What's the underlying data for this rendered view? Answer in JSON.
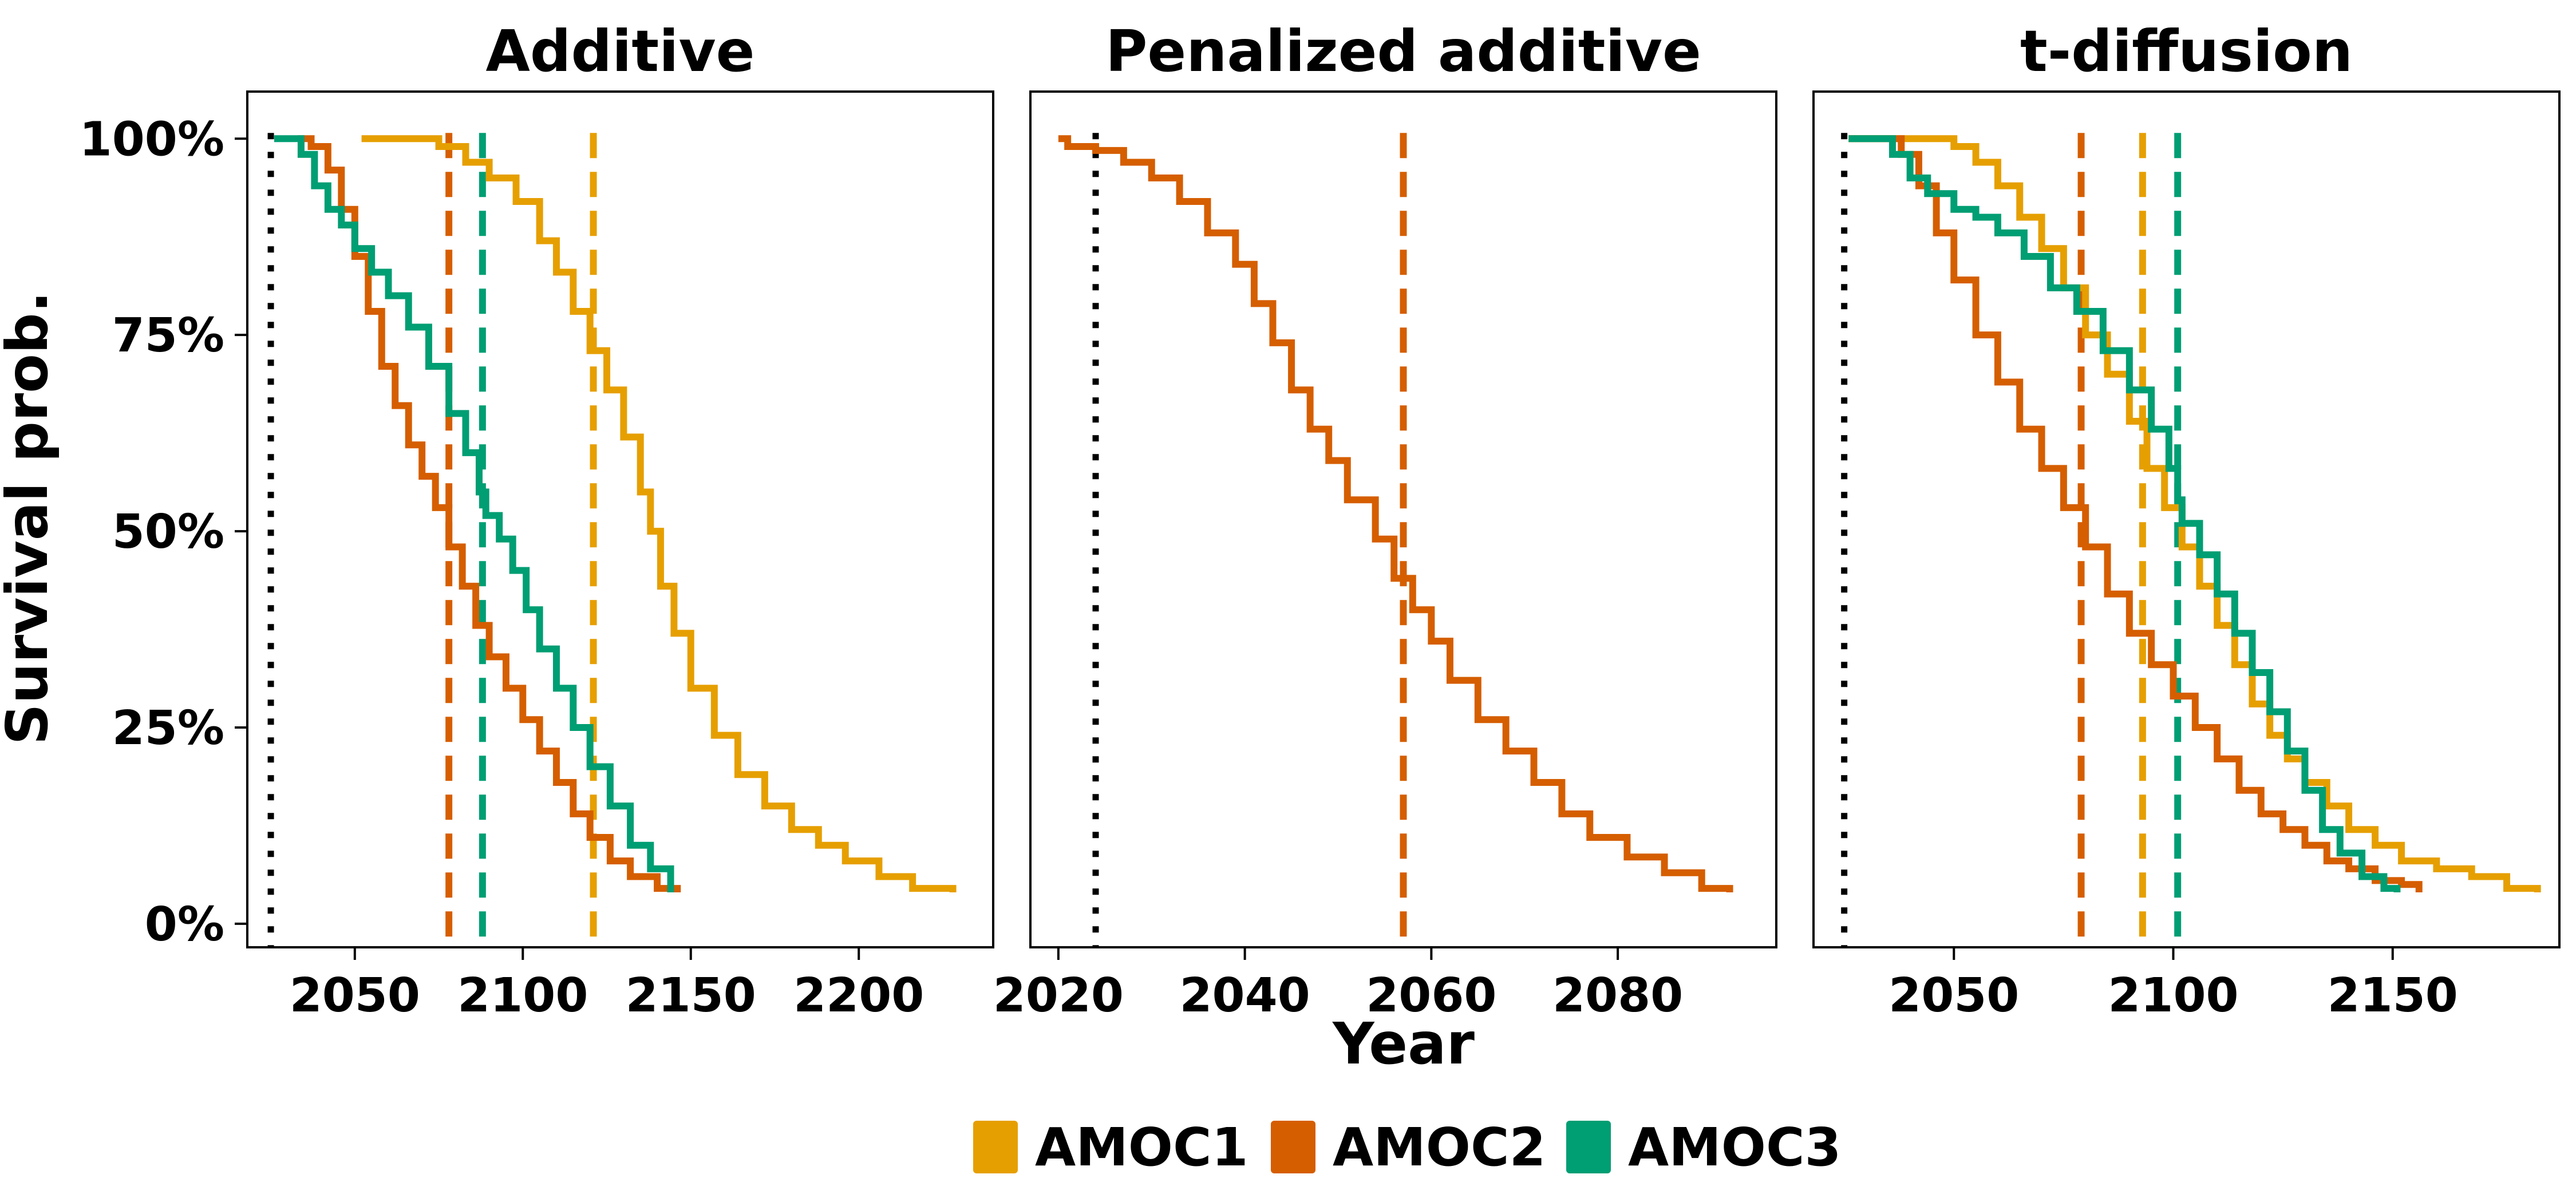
{
  "figure": {
    "ylabel": "Survival prob.",
    "xlabel": "Year",
    "colors": {
      "AMOC1": "#E69F00",
      "AMOC2": "#D55E00",
      "AMOC3": "#009E73"
    },
    "legend": {
      "placement": "bottom-center",
      "entries": [
        "AMOC1",
        "AMOC2",
        "AMOC3"
      ]
    }
  },
  "chart_data": [
    {
      "type": "line",
      "title": "Additive",
      "xlim": [
        2018,
        2240
      ],
      "ylim": [
        -0.03,
        1.06
      ],
      "xticks": [
        2050,
        2100,
        2150,
        2200
      ],
      "yticks": [
        0,
        0.25,
        0.5,
        0.75,
        1.0
      ],
      "ytick_labels": [
        "0%",
        "25%",
        "50%",
        "75%",
        "100%"
      ],
      "step": true,
      "series": [
        {
          "name": "AMOC1",
          "points": [
            [
              2052,
              1.0
            ],
            [
              2068,
              1.0
            ],
            [
              2075,
              0.99
            ],
            [
              2083,
              0.97
            ],
            [
              2090,
              0.95
            ],
            [
              2098,
              0.92
            ],
            [
              2105,
              0.87
            ],
            [
              2110,
              0.83
            ],
            [
              2115,
              0.78
            ],
            [
              2120,
              0.73
            ],
            [
              2125,
              0.68
            ],
            [
              2130,
              0.62
            ],
            [
              2135,
              0.55
            ],
            [
              2138,
              0.5
            ],
            [
              2141,
              0.43
            ],
            [
              2145,
              0.37
            ],
            [
              2150,
              0.3
            ],
            [
              2157,
              0.24
            ],
            [
              2164,
              0.19
            ],
            [
              2172,
              0.15
            ],
            [
              2180,
              0.12
            ],
            [
              2188,
              0.1
            ],
            [
              2196,
              0.08
            ],
            [
              2206,
              0.06
            ],
            [
              2216,
              0.045
            ],
            [
              2228,
              0.04
            ]
          ]
        },
        {
          "name": "AMOC2",
          "points": [
            [
              2033,
              1.0
            ],
            [
              2037,
              0.99
            ],
            [
              2042,
              0.96
            ],
            [
              2046,
              0.91
            ],
            [
              2050,
              0.85
            ],
            [
              2054,
              0.78
            ],
            [
              2058,
              0.71
            ],
            [
              2062,
              0.66
            ],
            [
              2066,
              0.61
            ],
            [
              2070,
              0.57
            ],
            [
              2074,
              0.53
            ],
            [
              2078,
              0.48
            ],
            [
              2082,
              0.43
            ],
            [
              2086,
              0.38
            ],
            [
              2090,
              0.34
            ],
            [
              2095,
              0.3
            ],
            [
              2100,
              0.26
            ],
            [
              2105,
              0.22
            ],
            [
              2110,
              0.18
            ],
            [
              2115,
              0.14
            ],
            [
              2120,
              0.11
            ],
            [
              2126,
              0.08
            ],
            [
              2132,
              0.06
            ],
            [
              2140,
              0.045
            ],
            [
              2146,
              0.04
            ]
          ]
        },
        {
          "name": "AMOC3",
          "points": [
            [
              2026,
              1.0
            ],
            [
              2030,
              1.0
            ],
            [
              2034,
              0.98
            ],
            [
              2038,
              0.94
            ],
            [
              2042,
              0.91
            ],
            [
              2046,
              0.89
            ],
            [
              2050,
              0.86
            ],
            [
              2055,
              0.83
            ],
            [
              2060,
              0.8
            ],
            [
              2066,
              0.76
            ],
            [
              2072,
              0.71
            ],
            [
              2078,
              0.65
            ],
            [
              2083,
              0.6
            ],
            [
              2087,
              0.55
            ],
            [
              2089,
              0.52
            ],
            [
              2093,
              0.49
            ],
            [
              2097,
              0.45
            ],
            [
              2101,
              0.4
            ],
            [
              2105,
              0.35
            ],
            [
              2110,
              0.3
            ],
            [
              2115,
              0.25
            ],
            [
              2120,
              0.2
            ],
            [
              2126,
              0.15
            ],
            [
              2132,
              0.1
            ],
            [
              2138,
              0.07
            ],
            [
              2144,
              0.04
            ]
          ]
        }
      ],
      "vlines": [
        {
          "x": 2025,
          "style": "dotted",
          "color": "#000000"
        },
        {
          "x": 2078,
          "style": "dashed",
          "color": "#D55E00"
        },
        {
          "x": 2088,
          "style": "dashed",
          "color": "#009E73"
        },
        {
          "x": 2121,
          "style": "dashed",
          "color": "#E69F00"
        }
      ]
    },
    {
      "type": "line",
      "title": "Penalized additive",
      "xlim": [
        2017,
        2097
      ],
      "ylim": [
        -0.03,
        1.06
      ],
      "xticks": [
        2020,
        2040,
        2060,
        2080
      ],
      "yticks": [
        0,
        0.25,
        0.5,
        0.75,
        1.0
      ],
      "ytick_labels": [],
      "step": true,
      "series": [
        {
          "name": "AMOC2",
          "points": [
            [
              2020,
              1.0
            ],
            [
              2021,
              0.99
            ],
            [
              2024,
              0.985
            ],
            [
              2027,
              0.97
            ],
            [
              2030,
              0.95
            ],
            [
              2033,
              0.92
            ],
            [
              2036,
              0.88
            ],
            [
              2039,
              0.84
            ],
            [
              2041,
              0.79
            ],
            [
              2043,
              0.74
            ],
            [
              2045,
              0.68
            ],
            [
              2047,
              0.63
            ],
            [
              2049,
              0.59
            ],
            [
              2051,
              0.54
            ],
            [
              2054,
              0.49
            ],
            [
              2056,
              0.44
            ],
            [
              2058,
              0.4
            ],
            [
              2060,
              0.36
            ],
            [
              2062,
              0.31
            ],
            [
              2065,
              0.26
            ],
            [
              2068,
              0.22
            ],
            [
              2071,
              0.18
            ],
            [
              2074,
              0.14
            ],
            [
              2077,
              0.11
            ],
            [
              2081,
              0.085
            ],
            [
              2085,
              0.065
            ],
            [
              2089,
              0.045
            ],
            [
              2092,
              0.04
            ]
          ]
        }
      ],
      "vlines": [
        {
          "x": 2024,
          "style": "dotted",
          "color": "#000000"
        },
        {
          "x": 2057,
          "style": "dashed",
          "color": "#D55E00"
        }
      ]
    },
    {
      "type": "line",
      "title": "t-diffusion",
      "xlim": [
        2018,
        2188
      ],
      "ylim": [
        -0.03,
        1.06
      ],
      "xticks": [
        2050,
        2100,
        2150
      ],
      "yticks": [
        0,
        0.25,
        0.5,
        0.75,
        1.0
      ],
      "ytick_labels": [],
      "step": true,
      "series": [
        {
          "name": "AMOC1",
          "points": [
            [
              2026,
              1.0
            ],
            [
              2045,
              1.0
            ],
            [
              2050,
              0.99
            ],
            [
              2055,
              0.97
            ],
            [
              2060,
              0.94
            ],
            [
              2065,
              0.9
            ],
            [
              2070,
              0.86
            ],
            [
              2075,
              0.81
            ],
            [
              2080,
              0.75
            ],
            [
              2085,
              0.7
            ],
            [
              2090,
              0.64
            ],
            [
              2094,
              0.58
            ],
            [
              2098,
              0.53
            ],
            [
              2102,
              0.48
            ],
            [
              2106,
              0.43
            ],
            [
              2110,
              0.38
            ],
            [
              2114,
              0.33
            ],
            [
              2118,
              0.28
            ],
            [
              2122,
              0.24
            ],
            [
              2126,
              0.21
            ],
            [
              2130,
              0.18
            ],
            [
              2135,
              0.15
            ],
            [
              2140,
              0.12
            ],
            [
              2146,
              0.1
            ],
            [
              2152,
              0.08
            ],
            [
              2160,
              0.07
            ],
            [
              2168,
              0.06
            ],
            [
              2176,
              0.045
            ],
            [
              2183,
              0.04
            ]
          ]
        },
        {
          "name": "AMOC2",
          "points": [
            [
              2026,
              1.0
            ],
            [
              2034,
              1.0
            ],
            [
              2038,
              0.98
            ],
            [
              2042,
              0.94
            ],
            [
              2046,
              0.88
            ],
            [
              2050,
              0.82
            ],
            [
              2055,
              0.75
            ],
            [
              2060,
              0.69
            ],
            [
              2065,
              0.63
            ],
            [
              2070,
              0.58
            ],
            [
              2075,
              0.53
            ],
            [
              2080,
              0.48
            ],
            [
              2085,
              0.42
            ],
            [
              2090,
              0.37
            ],
            [
              2095,
              0.33
            ],
            [
              2100,
              0.29
            ],
            [
              2105,
              0.25
            ],
            [
              2110,
              0.21
            ],
            [
              2115,
              0.17
            ],
            [
              2120,
              0.14
            ],
            [
              2125,
              0.12
            ],
            [
              2130,
              0.1
            ],
            [
              2135,
              0.08
            ],
            [
              2140,
              0.07
            ],
            [
              2146,
              0.055
            ],
            [
              2152,
              0.05
            ],
            [
              2156,
              0.04
            ]
          ]
        },
        {
          "name": "AMOC3",
          "points": [
            [
              2026,
              1.0
            ],
            [
              2032,
              1.0
            ],
            [
              2036,
              0.98
            ],
            [
              2040,
              0.95
            ],
            [
              2044,
              0.93
            ],
            [
              2050,
              0.91
            ],
            [
              2055,
              0.9
            ],
            [
              2060,
              0.88
            ],
            [
              2066,
              0.85
            ],
            [
              2072,
              0.81
            ],
            [
              2078,
              0.78
            ],
            [
              2084,
              0.73
            ],
            [
              2090,
              0.68
            ],
            [
              2095,
              0.63
            ],
            [
              2099,
              0.58
            ],
            [
              2101,
              0.54
            ],
            [
              2102,
              0.51
            ],
            [
              2106,
              0.47
            ],
            [
              2110,
              0.42
            ],
            [
              2114,
              0.37
            ],
            [
              2118,
              0.32
            ],
            [
              2122,
              0.27
            ],
            [
              2126,
              0.22
            ],
            [
              2130,
              0.17
            ],
            [
              2134,
              0.12
            ],
            [
              2138,
              0.09
            ],
            [
              2143,
              0.06
            ],
            [
              2148,
              0.045
            ],
            [
              2151,
              0.04
            ]
          ]
        }
      ],
      "vlines": [
        {
          "x": 2025,
          "style": "dotted",
          "color": "#000000"
        },
        {
          "x": 2079,
          "style": "dashed",
          "color": "#D55E00"
        },
        {
          "x": 2093,
          "style": "dashed",
          "color": "#E69F00"
        },
        {
          "x": 2101,
          "style": "dashed",
          "color": "#009E73"
        }
      ]
    }
  ]
}
